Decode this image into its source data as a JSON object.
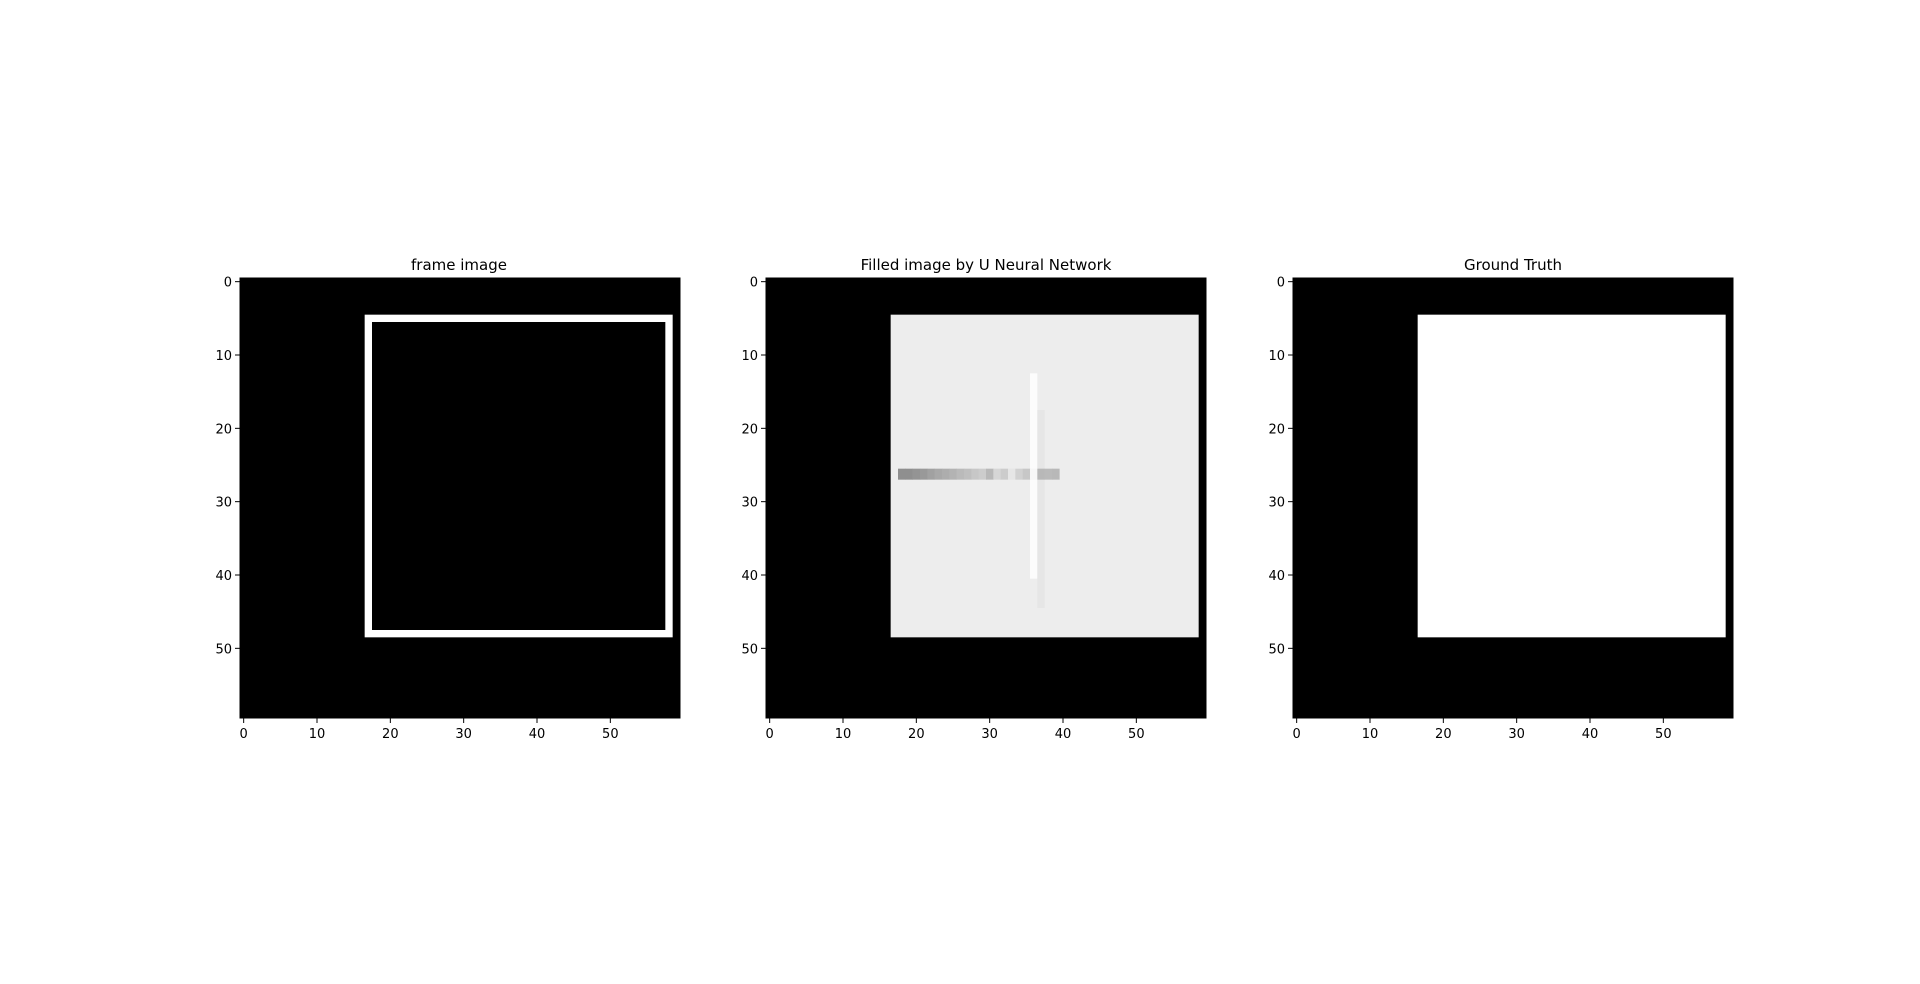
{
  "chart_data": [
    {
      "type": "heatmap",
      "title": "frame image",
      "xlim": [
        -0.5,
        59.5
      ],
      "ylim": [
        59.5,
        -0.5
      ],
      "xticks": [
        0,
        10,
        20,
        30,
        40,
        50
      ],
      "yticks": [
        0,
        10,
        20,
        30,
        40,
        50
      ],
      "background": 0,
      "regions": [
        {
          "name": "frame-outer",
          "col_start": 17,
          "col_end": 58,
          "row_start": 5,
          "row_end": 48,
          "value": 1
        },
        {
          "name": "frame-inner",
          "col_start": 18,
          "col_end": 57,
          "row_start": 6,
          "row_end": 47,
          "value": 0
        }
      ]
    },
    {
      "type": "heatmap",
      "title": "Filled image by U Neural Network",
      "xlim": [
        -0.5,
        59.5
      ],
      "ylim": [
        59.5,
        -0.5
      ],
      "xticks": [
        0,
        10,
        20,
        30,
        40,
        50
      ],
      "yticks": [
        0,
        10,
        20,
        30,
        40,
        50
      ],
      "background": 0,
      "regions": [
        {
          "name": "filled-square",
          "col_start": 17,
          "col_end": 58,
          "row_start": 5,
          "row_end": 48,
          "value": 0.93
        },
        {
          "name": "bright-column",
          "col_start": 36,
          "col_end": 36,
          "row_start": 13,
          "row_end": 40,
          "value": 0.99
        },
        {
          "name": "faint-column",
          "col_start": 37,
          "col_end": 37,
          "row_start": 18,
          "row_end": 44,
          "value": 0.9
        }
      ],
      "row26_values": [
        0.56,
        0.56,
        0.58,
        0.6,
        0.63,
        0.66,
        0.68,
        0.7,
        0.73,
        0.75,
        0.78,
        0.8,
        0.72,
        0.84,
        0.8,
        0.9,
        0.82,
        0.78,
        0.97,
        0.72,
        0.73,
        0.72
      ],
      "row26_start_col": 18
    },
    {
      "type": "heatmap",
      "title": "Ground Truth",
      "xlim": [
        -0.5,
        59.5
      ],
      "ylim": [
        59.5,
        -0.5
      ],
      "xticks": [
        0,
        10,
        20,
        30,
        40,
        50
      ],
      "yticks": [
        0,
        10,
        20,
        30,
        40,
        50
      ],
      "background": 0,
      "regions": [
        {
          "name": "square",
          "col_start": 17,
          "col_end": 58,
          "row_start": 5,
          "row_end": 48,
          "value": 1
        }
      ]
    }
  ]
}
